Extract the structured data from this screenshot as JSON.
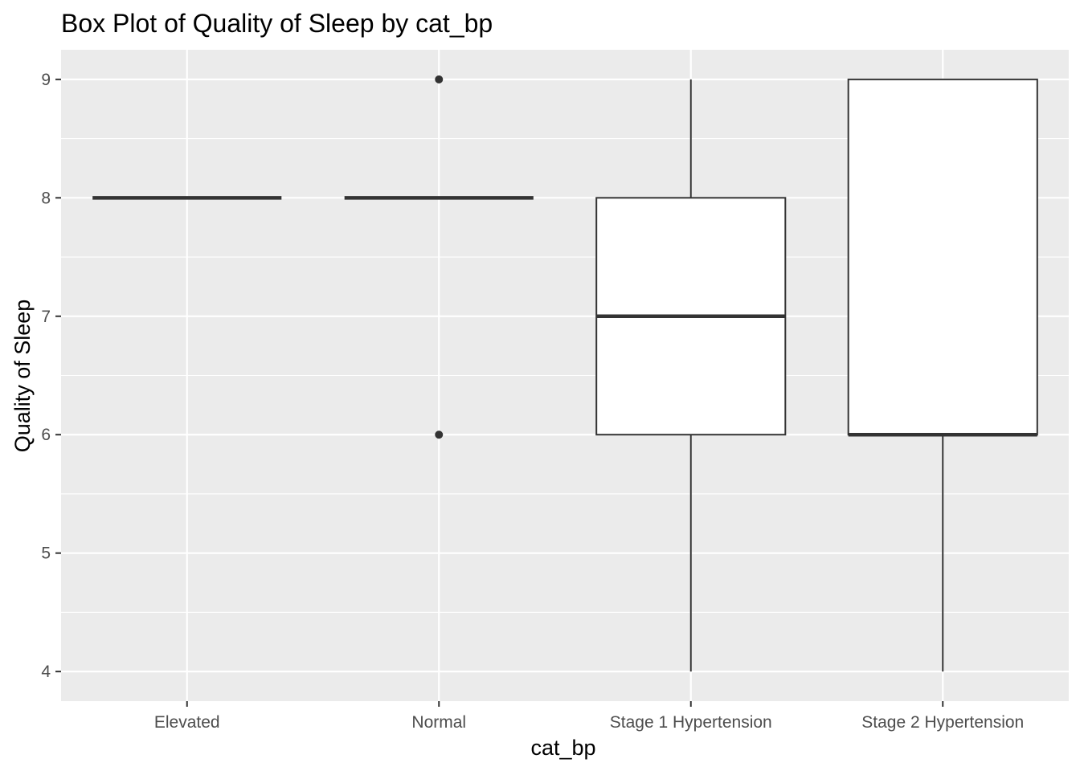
{
  "chart_data": {
    "type": "box",
    "title": "Box Plot of Quality of Sleep by cat_bp",
    "xlabel": "cat_bp",
    "ylabel": "Quality of Sleep",
    "categories": [
      "Elevated",
      "Normal",
      "Stage 1 Hypertension",
      "Stage 2 Hypertension"
    ],
    "boxes": [
      {
        "category": "Elevated",
        "whisker_low": 8,
        "q1": 8,
        "median": 8,
        "q3": 8,
        "whisker_high": 8,
        "outliers": []
      },
      {
        "category": "Normal",
        "whisker_low": 8,
        "q1": 8,
        "median": 8,
        "q3": 8,
        "whisker_high": 8,
        "outliers": [
          9,
          6
        ]
      },
      {
        "category": "Stage 1 Hypertension",
        "whisker_low": 4,
        "q1": 6,
        "median": 7,
        "q3": 8,
        "whisker_high": 9,
        "outliers": []
      },
      {
        "category": "Stage 2 Hypertension",
        "whisker_low": 4,
        "q1": 6,
        "median": 6,
        "q3": 9,
        "whisker_high": 9,
        "outliers": []
      }
    ],
    "yticks": [
      4,
      5,
      6,
      7,
      8,
      9
    ],
    "ylim": [
      3.75,
      9.25
    ],
    "grid": true,
    "colors": {
      "panel_background": "#ebebeb",
      "grid_line": "#ffffff",
      "box_fill": "#ffffff",
      "box_stroke": "#333333",
      "tick_text": "#4d4d4d"
    }
  }
}
